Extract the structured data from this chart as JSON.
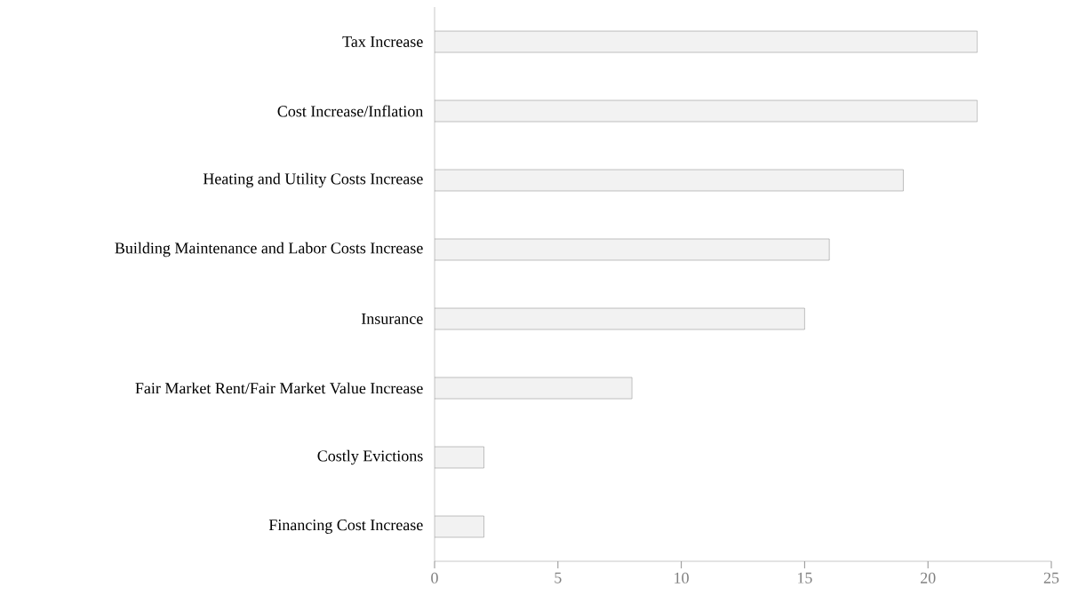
{
  "chart_data": {
    "type": "bar",
    "orientation": "horizontal",
    "categories": [
      "Tax Increase",
      "Cost Increase/Inflation",
      "Heating and Utility Costs Increase",
      "Building Maintenance and Labor Costs Increase",
      "Insurance",
      "Fair Market Rent/Fair Market Value Increase",
      "Costly Evictions",
      "Financing Cost Increase"
    ],
    "values": [
      22,
      22,
      19,
      16,
      15,
      8,
      2,
      2
    ],
    "color": "#f2f2f2",
    "xlim": [
      0,
      25
    ],
    "xticks": [
      0,
      5,
      10,
      15,
      20,
      25
    ]
  }
}
